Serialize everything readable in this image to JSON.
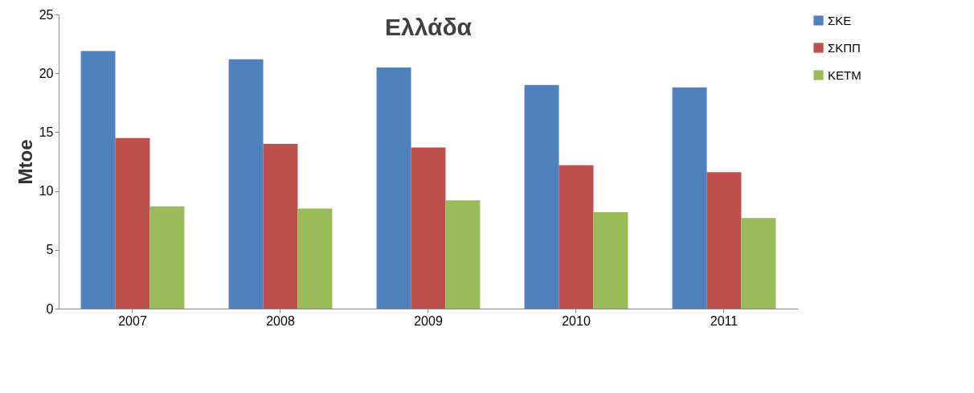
{
  "chart_data": {
    "type": "bar",
    "title": "Ελλάδα",
    "ylabel": "Mtoe",
    "categories": [
      "2007",
      "2008",
      "2009",
      "2010",
      "2011"
    ],
    "series": [
      {
        "name": "ΣΚΕ",
        "color": "#4f81bd",
        "values": [
          21.9,
          21.2,
          20.5,
          19.0,
          18.8
        ]
      },
      {
        "name": "ΣΚΠΠ",
        "color": "#c0504d",
        "values": [
          14.5,
          14.0,
          13.7,
          12.2,
          11.6
        ]
      },
      {
        "name": "ΚΕΤΜ",
        "color": "#9bbb59",
        "values": [
          8.7,
          8.5,
          9.2,
          8.2,
          7.7
        ]
      }
    ],
    "ylim": [
      0,
      25
    ],
    "yticks": [
      0,
      5,
      10,
      15,
      20,
      25
    ],
    "grid": false,
    "legend": "right"
  }
}
